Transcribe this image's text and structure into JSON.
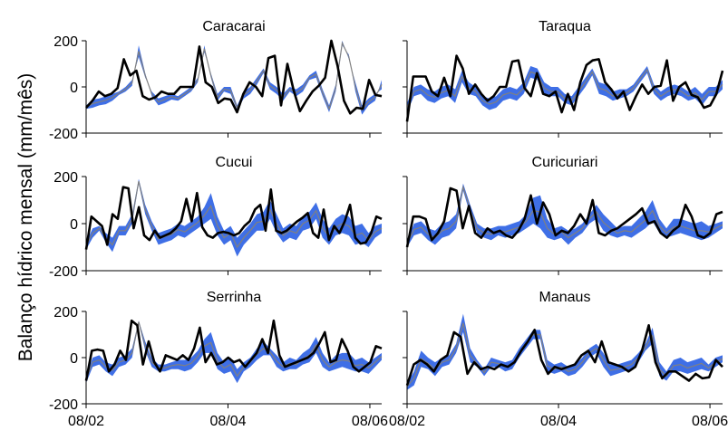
{
  "figure": {
    "ylabel": "Balanço hídrico mensal (mm/mês)",
    "x_ticks": [
      "08/02",
      "08/04",
      "08/06"
    ],
    "y_ticks": [
      "200",
      "0",
      "-200"
    ]
  },
  "colors": {
    "band": "#3f6fe6",
    "line": "#000000",
    "band_edge": "#808080",
    "axis": "#000000"
  },
  "chart_data": [
    {
      "type": "area",
      "title": "Caracarai",
      "ylim": [
        -200,
        200
      ],
      "series": [
        {
          "values": [
            -95,
            -90,
            -80,
            -75,
            -60,
            -35,
            -20,
            5,
            180,
            60,
            -40,
            -80,
            -70,
            -55,
            -60,
            -40,
            -20,
            20,
            180,
            40,
            -60,
            -20,
            -30,
            -100,
            -50,
            -30,
            10,
            60,
            -10,
            -30,
            -60,
            -20,
            -40,
            -20,
            30,
            40,
            -40,
            -110,
            -20,
            180,
            140,
            -20,
            -120,
            -80,
            -60,
            30
          ]
        },
        {
          "values": [
            -80,
            -55,
            -50,
            -40,
            -30,
            -20,
            0,
            30,
            130,
            40,
            -20,
            -50,
            -40,
            -30,
            -40,
            -20,
            0,
            40,
            150,
            60,
            -30,
            0,
            0,
            -80,
            -20,
            0,
            40,
            80,
            20,
            0,
            -30,
            0,
            -10,
            10,
            50,
            70,
            -10,
            -80,
            10,
            200,
            120,
            20,
            -80,
            -50,
            -30,
            -10
          ]
        },
        {
          "values": [
            -90,
            -60,
            -20,
            -40,
            -30,
            -5,
            120,
            50,
            70,
            -40,
            -55,
            -45,
            -20,
            -30,
            -30,
            0,
            0,
            0,
            175,
            20,
            0,
            -70,
            -50,
            -55,
            -110,
            -30,
            20,
            0,
            -40,
            125,
            135,
            -80,
            100,
            -15,
            -105,
            -60,
            -20,
            5,
            40,
            200,
            90,
            -60,
            -115,
            -90,
            -95,
            30,
            -35,
            -40
          ]
        }
      ]
    },
    {
      "type": "area",
      "title": "Taraqua",
      "ylim": [
        -200,
        200
      ],
      "series": [
        {
          "values": [
            -110,
            -40,
            -30,
            -60,
            -70,
            -50,
            -40,
            -70,
            20,
            -30,
            -40,
            -80,
            -100,
            -90,
            -60,
            -50,
            -60,
            -30,
            40,
            30,
            -30,
            -40,
            -40,
            -70,
            -80,
            -40,
            0,
            50,
            -30,
            -40,
            -60,
            -50,
            -40,
            -20,
            20,
            60,
            -30,
            -60,
            -40,
            -30,
            -40,
            -60,
            -50,
            -80,
            -40,
            -40,
            -10
          ]
        },
        {
          "values": [
            -70,
            0,
            10,
            -10,
            -20,
            0,
            10,
            -10,
            70,
            20,
            0,
            -40,
            -50,
            -40,
            -10,
            0,
            -10,
            20,
            90,
            80,
            20,
            0,
            0,
            -30,
            -40,
            0,
            40,
            80,
            20,
            10,
            -20,
            -10,
            -10,
            10,
            50,
            90,
            10,
            -20,
            0,
            10,
            0,
            -20,
            0,
            -30,
            0,
            0,
            30
          ]
        },
        {
          "values": [
            -150,
            45,
            45,
            45,
            -20,
            -40,
            40,
            -40,
            135,
            80,
            -30,
            10,
            -30,
            -60,
            -40,
            0,
            0,
            110,
            115,
            -5,
            -40,
            60,
            -30,
            -40,
            -20,
            -110,
            -30,
            -100,
            20,
            95,
            115,
            120,
            20,
            -10,
            -50,
            -20,
            -100,
            -40,
            10,
            -30,
            0,
            5,
            115,
            -60,
            0,
            20,
            -35,
            -45,
            -90,
            -80,
            -30,
            70
          ]
        }
      ]
    },
    {
      "type": "area",
      "title": "Cucui",
      "ylim": [
        -200,
        200
      ],
      "series": [
        {
          "values": [
            -110,
            -60,
            -30,
            -80,
            -120,
            -50,
            -50,
            0,
            170,
            40,
            -30,
            -90,
            -80,
            -70,
            -50,
            -60,
            -40,
            -20,
            0,
            20,
            -50,
            -90,
            -70,
            -140,
            -90,
            -60,
            -30,
            -30,
            20,
            -40,
            -80,
            -60,
            -70,
            -30,
            -20,
            20,
            -60,
            -90,
            -50,
            -40,
            -50,
            -90,
            -80,
            -100,
            -60,
            -40
          ]
        },
        {
          "values": [
            -80,
            -20,
            -10,
            -40,
            -60,
            -10,
            -10,
            40,
            190,
            80,
            10,
            -40,
            -30,
            -20,
            0,
            -10,
            10,
            30,
            70,
            130,
            30,
            -30,
            -10,
            -60,
            -30,
            0,
            40,
            50,
            100,
            40,
            -20,
            0,
            -10,
            30,
            50,
            90,
            20,
            -20,
            20,
            40,
            30,
            -10,
            0,
            -40,
            -10,
            0
          ]
        },
        {
          "values": [
            -110,
            30,
            10,
            -10,
            -90,
            40,
            20,
            155,
            150,
            -20,
            70,
            -50,
            -70,
            -30,
            -60,
            -50,
            -40,
            -20,
            10,
            105,
            10,
            130,
            -15,
            -50,
            -60,
            -40,
            -35,
            -40,
            -50,
            -40,
            -10,
            10,
            60,
            80,
            -30,
            145,
            -30,
            -40,
            -30,
            -10,
            10,
            25,
            45,
            -40,
            -60,
            60,
            -70,
            -10,
            -40,
            10,
            80,
            -60,
            -85,
            -80,
            -40,
            30,
            20
          ]
        }
      ]
    },
    {
      "type": "area",
      "title": "Curicuriari",
      "ylim": [
        -200,
        200
      ],
      "series": [
        {
          "values": [
            -100,
            -50,
            -40,
            -70,
            -90,
            -60,
            -50,
            -20,
            140,
            40,
            -40,
            -60,
            -70,
            -50,
            -60,
            -50,
            -40,
            -20,
            0,
            -20,
            -60,
            -70,
            -60,
            -90,
            -60,
            -40,
            0,
            20,
            -30,
            -50,
            -60,
            -50,
            -60,
            -40,
            -20,
            10,
            -40,
            -60,
            -50,
            -40,
            -50,
            -60,
            -70,
            -60,
            -40,
            -20
          ]
        },
        {
          "values": [
            -70,
            0,
            10,
            -20,
            -30,
            0,
            10,
            40,
            170,
            80,
            0,
            -20,
            -20,
            -10,
            -10,
            0,
            10,
            40,
            110,
            120,
            20,
            -20,
            -10,
            -30,
            -20,
            0,
            40,
            80,
            40,
            10,
            -20,
            -10,
            -10,
            20,
            50,
            100,
            20,
            -20,
            20,
            20,
            10,
            0,
            10,
            -10,
            0,
            10
          ]
        },
        {
          "values": [
            -100,
            30,
            30,
            20,
            -70,
            -40,
            10,
            150,
            140,
            -20,
            75,
            -40,
            -60,
            -20,
            -40,
            -30,
            -50,
            -60,
            -30,
            20,
            120,
            0,
            90,
            40,
            -50,
            -30,
            -40,
            -10,
            40,
            0,
            100,
            -40,
            -50,
            -30,
            -20,
            0,
            20,
            40,
            65,
            0,
            10,
            -40,
            -60,
            -30,
            -10,
            80,
            30,
            -50,
            -60,
            -40,
            40,
            50
          ]
        }
      ]
    },
    {
      "type": "area",
      "title": "Serrinha",
      "ylim": [
        -200,
        200
      ],
      "series": [
        {
          "values": [
            -110,
            -40,
            -30,
            -60,
            -80,
            -40,
            -30,
            0,
            150,
            30,
            -40,
            -60,
            -60,
            -50,
            -50,
            -60,
            -50,
            -20,
            20,
            20,
            -50,
            -70,
            -60,
            -110,
            -60,
            -40,
            -10,
            10,
            10,
            -40,
            -60,
            -50,
            -50,
            -30,
            -20,
            20,
            -40,
            -60,
            -50,
            -40,
            -50,
            -60,
            -60,
            -70,
            -40,
            -10
          ]
        },
        {
          "values": [
            -80,
            0,
            10,
            -20,
            -30,
            0,
            10,
            40,
            160,
            70,
            0,
            -30,
            -30,
            -20,
            -10,
            -10,
            0,
            30,
            80,
            110,
            20,
            -20,
            0,
            -50,
            -20,
            0,
            40,
            70,
            40,
            10,
            -20,
            0,
            -10,
            20,
            40,
            90,
            20,
            -20,
            10,
            20,
            20,
            -10,
            0,
            -20,
            0,
            20
          ]
        },
        {
          "values": [
            -100,
            30,
            35,
            30,
            -60,
            -30,
            30,
            -10,
            160,
            140,
            -30,
            70,
            -20,
            -60,
            10,
            0,
            -10,
            10,
            -10,
            40,
            130,
            -20,
            20,
            -30,
            -20,
            0,
            -20,
            -10,
            -40,
            -10,
            20,
            80,
            20,
            160,
            10,
            -40,
            -30,
            -20,
            -10,
            0,
            20,
            60,
            110,
            -20,
            -10,
            80,
            30,
            -40,
            -60,
            -40,
            -20,
            50,
            40
          ]
        }
      ]
    },
    {
      "type": "area",
      "title": "Manaus",
      "ylim": [
        -200,
        200
      ],
      "series": [
        {
          "values": [
            -140,
            -120,
            -40,
            -50,
            -80,
            -40,
            -30,
            20,
            110,
            -20,
            -40,
            -80,
            -40,
            -40,
            -60,
            -50,
            0,
            40,
            80,
            80,
            -60,
            -70,
            -60,
            -80,
            -70,
            -40,
            0,
            20,
            -40,
            -80,
            -70,
            -60,
            -50,
            -20,
            30,
            60,
            -80,
            -100,
            -60,
            -60,
            -70,
            -60,
            -50,
            -60,
            -40,
            -20
          ]
        },
        {
          "values": [
            -110,
            -60,
            30,
            0,
            -20,
            0,
            10,
            60,
            190,
            40,
            -10,
            -50,
            0,
            -10,
            -20,
            -10,
            40,
            80,
            120,
            120,
            -10,
            -30,
            -20,
            -40,
            -30,
            0,
            40,
            60,
            20,
            -30,
            -30,
            -20,
            -10,
            20,
            60,
            130,
            -20,
            -60,
            -10,
            0,
            -20,
            -10,
            0,
            -30,
            0,
            10
          ]
        },
        {
          "values": [
            -120,
            -30,
            -10,
            -30,
            -60,
            -10,
            10,
            110,
            90,
            -70,
            -20,
            -50,
            -40,
            -50,
            -30,
            -40,
            -20,
            30,
            70,
            120,
            -10,
            -70,
            -40,
            -50,
            -40,
            -30,
            10,
            30,
            -20,
            70,
            -20,
            -30,
            -40,
            -60,
            -40,
            30,
            140,
            -20,
            -90,
            -60,
            -60,
            -80,
            -100,
            -70,
            -90,
            -85,
            -10,
            -40
          ]
        }
      ]
    }
  ]
}
